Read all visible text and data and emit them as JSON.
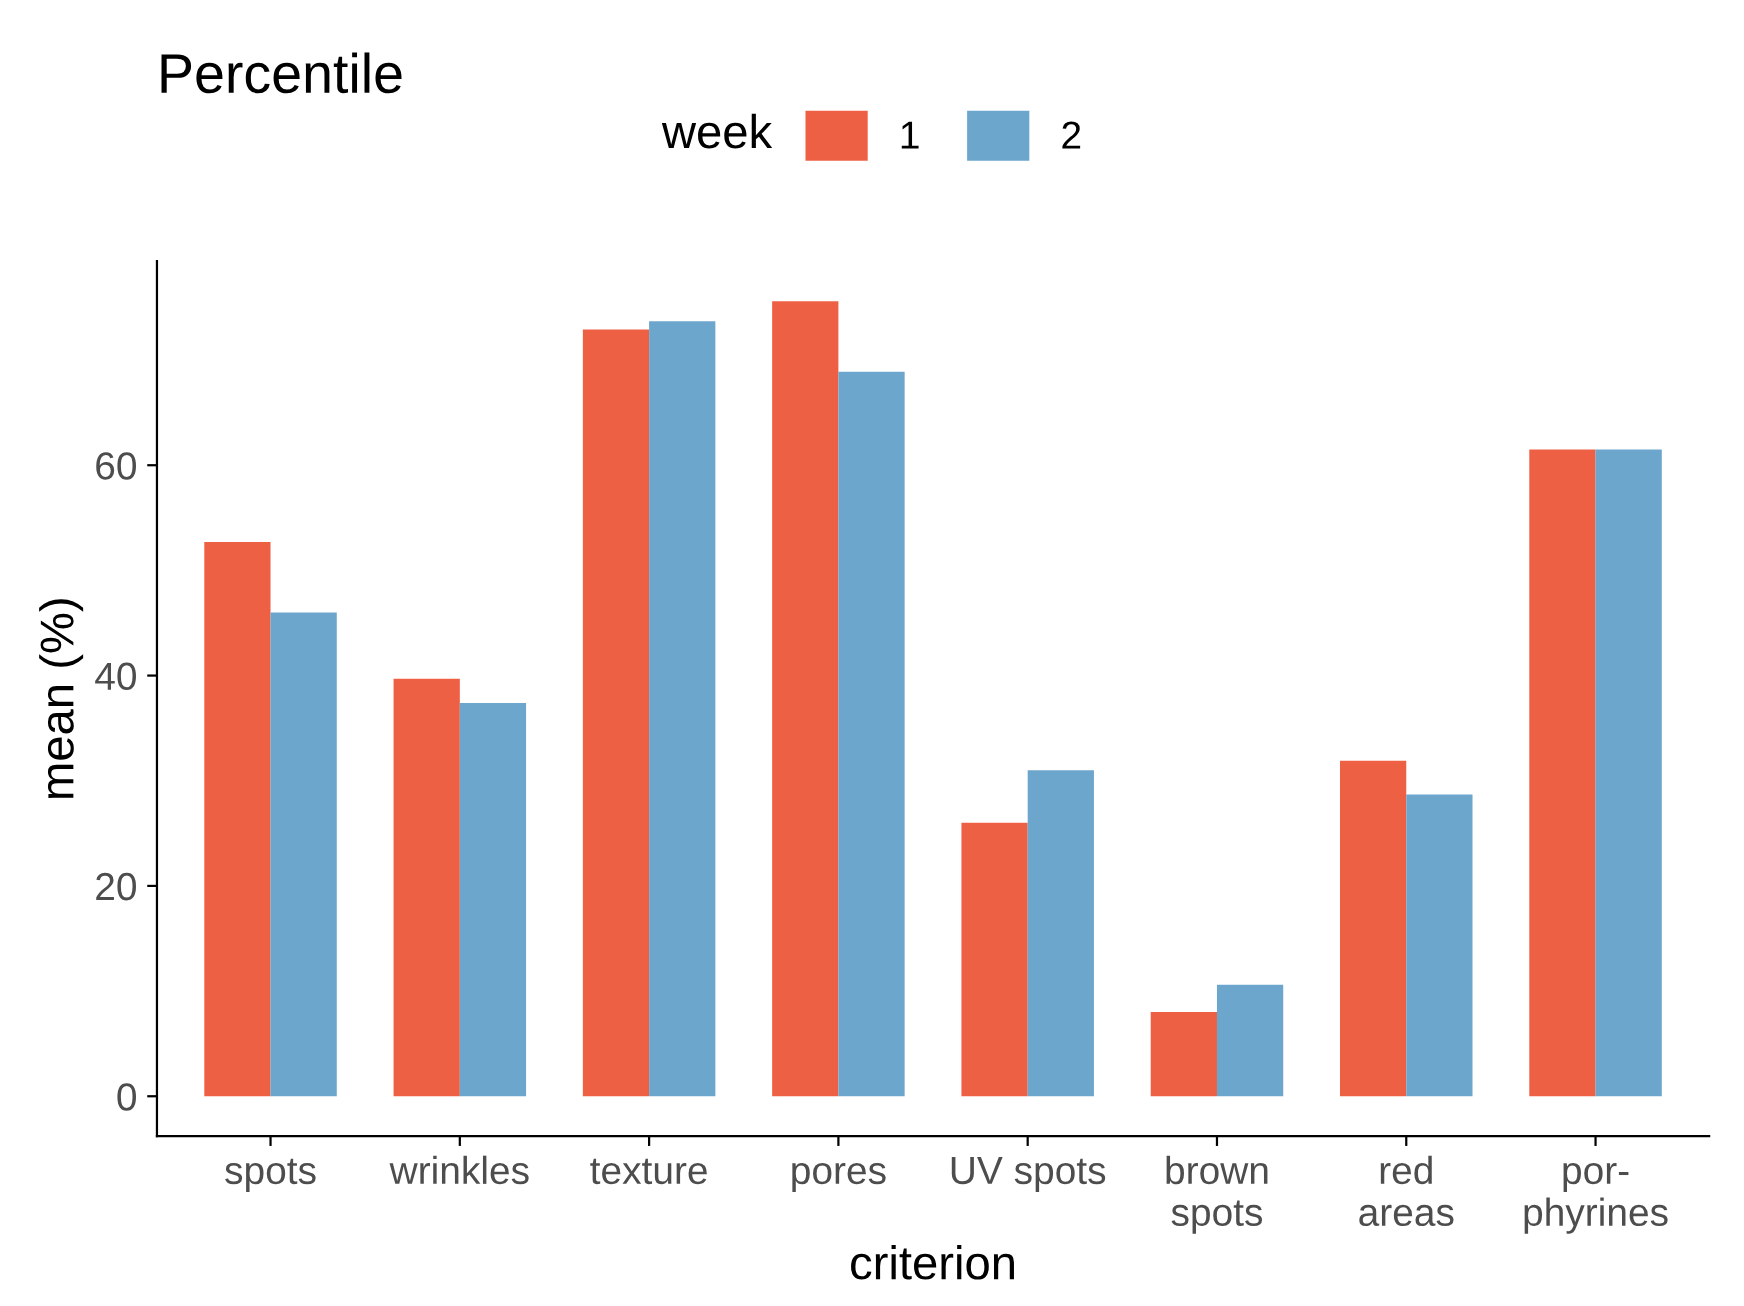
{
  "chart_data": {
    "type": "bar",
    "title": "Percentile",
    "xlabel": "criterion",
    "ylabel": "mean (%)",
    "legend_title": "week",
    "legend": "top",
    "categories": [
      "spots",
      "wrinkles",
      "texture",
      "pores",
      "UV spots",
      "brown\nspots",
      "red\nareas",
      "por-\nphyrines"
    ],
    "series": [
      {
        "name": "1",
        "color": "#ee6044",
        "values": [
          52.7,
          39.7,
          72.9,
          75.6,
          26.0,
          8.0,
          31.9,
          61.5
        ]
      },
      {
        "name": "2",
        "color": "#6ca6cd",
        "values": [
          46.0,
          37.4,
          73.7,
          68.9,
          31.0,
          10.6,
          28.7,
          61.5
        ]
      }
    ],
    "ylim": [
      -3.8,
      79.4
    ],
    "yticks": [
      0,
      20,
      40,
      60
    ],
    "grid": false
  }
}
